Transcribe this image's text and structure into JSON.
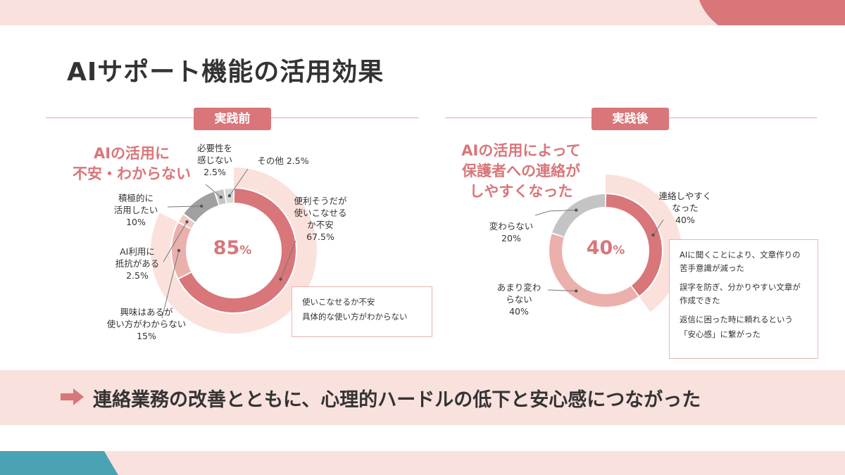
{
  "slide": {
    "title": "AIサポート機能の活用効果",
    "conclusion": "連絡業務の改善とともに、心理的ハードルの低下と安心感につながった",
    "colors": {
      "accent": "#d9767a",
      "light_pink": "#f9e1dd",
      "teal": "#4aa3b5"
    }
  },
  "chart_data": [
    {
      "type": "pie",
      "panel_label": "実践前",
      "headline": [
        "AIの活用に",
        "不安・わからない"
      ],
      "center_value": "85",
      "center_unit": "%",
      "slices": [
        {
          "label": [
            "便利そうだが",
            "使いこなせる",
            "か不安"
          ],
          "value_text": "67.5%",
          "value": 67.5,
          "color": "#d9767a"
        },
        {
          "label": [
            "興味はあるが",
            "使い方がわからない"
          ],
          "value_text": "15%",
          "value": 15,
          "color": "#ebb0ac"
        },
        {
          "label": [
            "AI利用に",
            "抵抗がある"
          ],
          "value_text": "2.5%",
          "value": 2.5,
          "color": "#f2c8c3"
        },
        {
          "label": [
            "積極的に",
            "活用したい"
          ],
          "value_text": "10%",
          "value": 10,
          "color": "#a0a0a0"
        },
        {
          "label": [
            "必要性を",
            "感じない"
          ],
          "value_text": "2.5%",
          "value": 2.5,
          "color": "#c4c4c4"
        },
        {
          "label": [
            "その他"
          ],
          "value_text": "2.5%",
          "value": 2.5,
          "color": "#d8d8d8"
        }
      ],
      "note": [
        "使いこなせるか不安",
        "具体的な使い方がわからない"
      ]
    },
    {
      "type": "pie",
      "panel_label": "実践後",
      "headline": [
        "AIの活用によって",
        "保護者への連絡が",
        "しやすくなった"
      ],
      "center_value": "40",
      "center_unit": "%",
      "slices": [
        {
          "label": [
            "連絡しやすく",
            "なった"
          ],
          "value_text": "40%",
          "value": 40,
          "color": "#d9767a"
        },
        {
          "label": [
            "あまり変わ",
            "らない"
          ],
          "value_text": "40%",
          "value": 40,
          "color": "#ebb0ac"
        },
        {
          "label": [
            "変わらない"
          ],
          "value_text": "20%",
          "value": 20,
          "color": "#c4c4c4"
        }
      ],
      "note": [
        [
          "AIに聞くことにより、文章作りの苦手意識が減った"
        ],
        [
          "誤字を防ぎ、分かりやすい文章が作成できた"
        ],
        [
          "返信に困った時に頼れるという",
          "「安心感」に繋がった"
        ]
      ]
    }
  ]
}
